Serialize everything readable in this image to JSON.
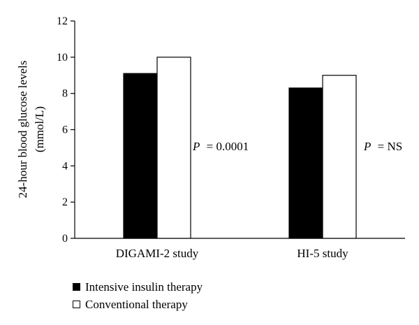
{
  "chart_data": {
    "type": "bar",
    "categories": [
      "DIGAMI-2 study",
      "HI-5 study"
    ],
    "series": [
      {
        "name": "Intensive insulin therapy",
        "values": [
          9.1,
          8.3
        ],
        "color": "#000000"
      },
      {
        "name": "Conventional therapy",
        "values": [
          10.0,
          9.0
        ],
        "color": "#ffffff"
      }
    ],
    "ylabel": [
      "24-hour blood glucose levels",
      "(mmol/L)"
    ],
    "xlabel": "",
    "ylim": [
      0,
      12
    ],
    "yticks": [
      "0",
      "2",
      "4",
      "6",
      "8",
      "10",
      "12"
    ],
    "annotations": [
      {
        "label": "P",
        "value": "= 0.0001"
      },
      {
        "label": "P",
        "value": "= NS"
      }
    ],
    "grid": false,
    "legend_position": "bottom-left"
  }
}
